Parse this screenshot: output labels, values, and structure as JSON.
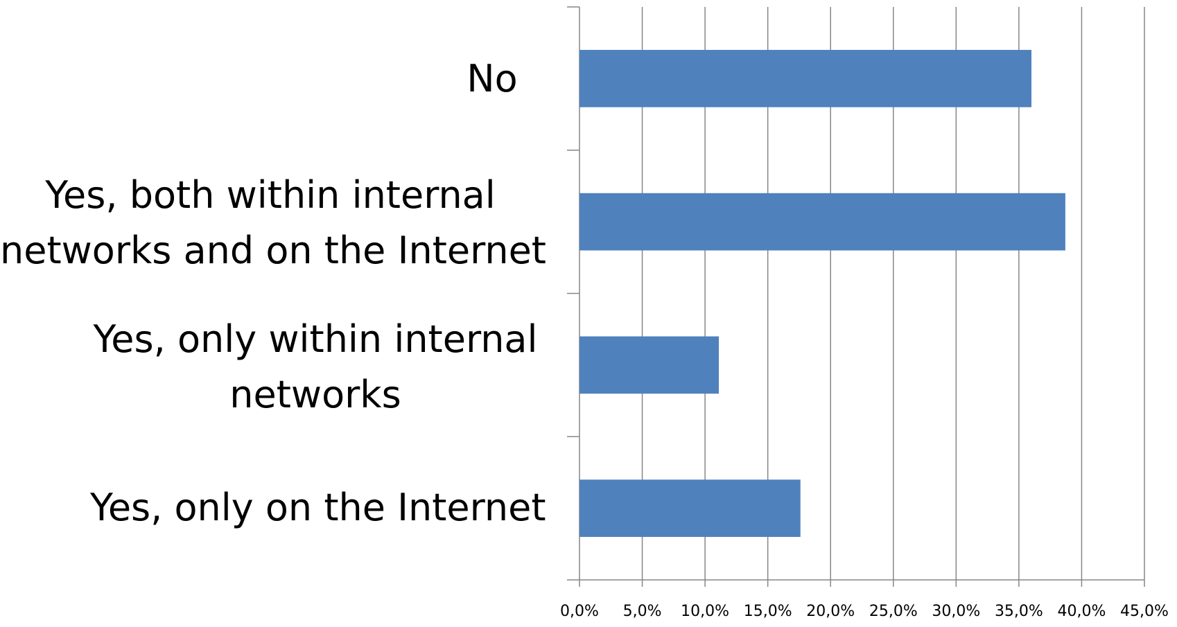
{
  "colors": {
    "bar": "#4f81bd",
    "grid": "#868686",
    "axis": "#868686"
  },
  "chart_data": {
    "type": "bar",
    "orientation": "horizontal",
    "categories": [
      "No",
      "Yes, both within internal networks and on the Internet",
      "Yes, only within internal networks",
      "Yes, only on the Internet"
    ],
    "category_lines": [
      [
        "No"
      ],
      [
        "Yes, both within internal",
        "networks and on the Internet"
      ],
      [
        "Yes, only within internal",
        "networks"
      ],
      [
        "Yes, only on the Internet"
      ]
    ],
    "values": [
      36.0,
      38.7,
      11.1,
      17.6
    ],
    "xlim": [
      0,
      45
    ],
    "x_ticks": [
      0,
      5,
      10,
      15,
      20,
      25,
      30,
      35,
      40,
      45
    ],
    "x_tick_labels": [
      "0,0%",
      "5,0%",
      "10,0%",
      "15,0%",
      "20,0%",
      "25,0%",
      "30,0%",
      "35,0%",
      "40,0%",
      "45,0%"
    ],
    "grid": true,
    "legend": "none",
    "title": "",
    "xlabel": "",
    "ylabel": ""
  }
}
